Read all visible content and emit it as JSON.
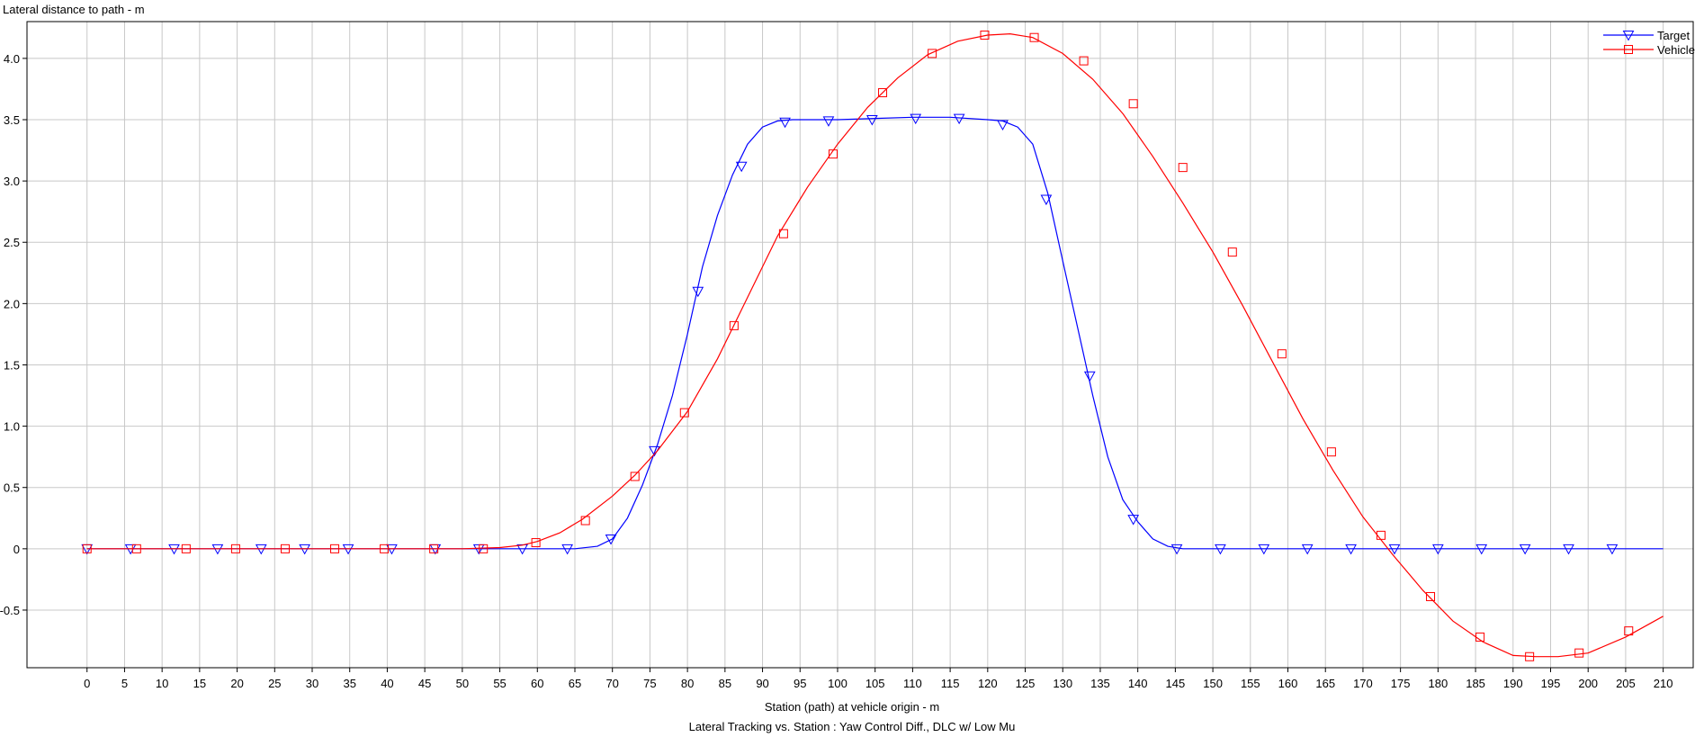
{
  "chart_data": {
    "type": "line",
    "title": "Lateral Tracking vs. Station : Yaw Control Diff., DLC w/ Low Mu",
    "xlabel": "Station (path) at vehicle origin - m",
    "ylabel": "Lateral distance to path - m",
    "xlim": [
      -8,
      214
    ],
    "ylim": [
      -0.97,
      4.3
    ],
    "xticks": [
      0,
      5,
      10,
      15,
      20,
      25,
      30,
      35,
      40,
      45,
      50,
      55,
      60,
      65,
      70,
      75,
      80,
      85,
      90,
      95,
      100,
      105,
      110,
      115,
      120,
      125,
      130,
      135,
      140,
      145,
      150,
      155,
      160,
      165,
      170,
      175,
      180,
      185,
      190,
      195,
      200,
      205,
      210
    ],
    "xtick_labels": [
      "0",
      "5",
      "10",
      "15",
      "20",
      "25",
      "30",
      "35",
      "40",
      "45",
      "50",
      "55",
      "60",
      "65",
      "70",
      "75",
      "80",
      "85",
      "90",
      "95",
      "100",
      "105",
      "110",
      "115",
      "120",
      "125",
      "130",
      "135",
      "140",
      "145",
      "150",
      "155",
      "160",
      "165",
      "170",
      "175",
      "180",
      "185",
      "190",
      "195",
      "200",
      "205",
      "210"
    ],
    "yticks": [
      -0.5,
      0,
      0.5,
      1.0,
      1.5,
      2.0,
      2.5,
      3.0,
      3.5,
      4.0
    ],
    "ytick_labels": [
      "-0.5",
      "0",
      "0.5",
      "1.0",
      "1.5",
      "2.0",
      "2.5",
      "3.0",
      "3.5",
      "4.0"
    ],
    "grid": true,
    "legend_position": "top-right",
    "series": [
      {
        "name": "Target",
        "color": "#0000ff",
        "marker": "triangle-down",
        "x": [
          0,
          10,
          20,
          30,
          40,
          50,
          55,
          60,
          65,
          68,
          70,
          72,
          74,
          76,
          78,
          80,
          82,
          84,
          86,
          88,
          90,
          92,
          94,
          96,
          100,
          105,
          110,
          115,
          120,
          122,
          124,
          126,
          128,
          130,
          132,
          134,
          136,
          138,
          140,
          142,
          144,
          146,
          150,
          160,
          170,
          180,
          190,
          200,
          210
        ],
        "y": [
          0,
          0,
          0,
          0,
          0,
          0,
          0,
          0,
          0,
          0.02,
          0.08,
          0.25,
          0.52,
          0.85,
          1.25,
          1.75,
          2.3,
          2.72,
          3.05,
          3.3,
          3.44,
          3.49,
          3.5,
          3.5,
          3.5,
          3.51,
          3.52,
          3.52,
          3.5,
          3.49,
          3.44,
          3.3,
          2.9,
          2.35,
          1.8,
          1.25,
          0.75,
          0.4,
          0.22,
          0.08,
          0.02,
          0,
          0,
          0,
          0,
          0,
          0,
          0,
          0
        ],
        "marker_x": [
          0,
          5.8,
          11.6,
          17.4,
          23.2,
          29,
          34.8,
          40.6,
          46.4,
          52.2,
          58,
          64,
          69.8,
          75.6,
          81.4,
          87.2,
          93,
          98.8,
          104.6,
          110.4,
          116.2,
          122,
          127.8,
          133.6,
          139.4,
          145.2,
          151,
          156.8,
          162.6,
          168.4,
          174.2,
          180,
          185.8,
          191.6,
          197.4,
          203.2
        ],
        "marker_y": [
          0,
          0,
          0,
          0,
          0,
          0,
          0,
          0,
          0,
          0,
          0,
          0,
          0.08,
          0.8,
          2.1,
          3.12,
          3.48,
          3.49,
          3.5,
          3.51,
          3.51,
          3.46,
          2.85,
          1.41,
          0.24,
          0,
          0,
          0,
          0,
          0,
          0,
          0,
          0,
          0,
          0,
          0
        ]
      },
      {
        "name": "Vehicle",
        "color": "#ff0000",
        "marker": "square",
        "x": [
          0,
          20,
          40,
          50,
          55,
          58,
          60,
          63,
          66,
          70,
          73,
          76,
          80,
          84,
          88,
          92,
          96,
          100,
          104,
          108,
          112,
          116,
          120,
          123,
          126,
          130,
          134,
          138,
          142,
          146,
          150,
          154,
          158,
          162,
          166,
          170,
          174,
          178,
          182,
          186,
          190,
          193,
          196,
          200,
          205,
          210
        ],
        "y": [
          0,
          0,
          0,
          0,
          0.01,
          0.03,
          0.06,
          0.13,
          0.24,
          0.43,
          0.6,
          0.8,
          1.12,
          1.55,
          2.05,
          2.55,
          2.95,
          3.3,
          3.6,
          3.84,
          4.03,
          4.14,
          4.19,
          4.2,
          4.17,
          4.04,
          3.83,
          3.55,
          3.2,
          2.82,
          2.42,
          1.98,
          1.52,
          1.06,
          0.64,
          0.26,
          -0.05,
          -0.34,
          -0.59,
          -0.76,
          -0.87,
          -0.88,
          -0.88,
          -0.85,
          -0.72,
          -0.55
        ],
        "marker_x": [
          0,
          6.6,
          13.2,
          19.8,
          26.4,
          33,
          39.6,
          46.2,
          52.8,
          59.8,
          66.4,
          73,
          79.6,
          86.2,
          92.8,
          99.4,
          106,
          112.6,
          119.6,
          126.2,
          132.8,
          139.4,
          146,
          152.6,
          159.2,
          165.8,
          172.4,
          179,
          185.6,
          192.2,
          198.8,
          205.4
        ],
        "marker_y": [
          0,
          0,
          0,
          0,
          0,
          0,
          0,
          0,
          0,
          0.05,
          0.23,
          0.59,
          1.11,
          1.82,
          2.57,
          3.22,
          3.72,
          4.04,
          4.19,
          4.17,
          3.98,
          3.63,
          3.11,
          2.42,
          1.59,
          0.79,
          0.11,
          -0.39,
          -0.72,
          -0.88,
          -0.85,
          -0.67
        ]
      }
    ]
  }
}
